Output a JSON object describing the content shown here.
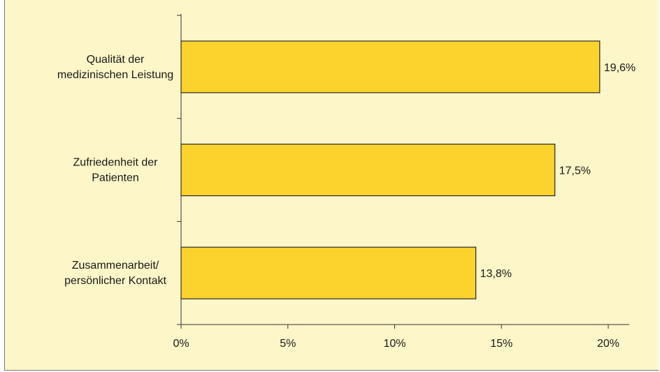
{
  "chart_data": {
    "type": "bar",
    "orientation": "horizontal",
    "categories": [
      [
        "Qualität der",
        "medizinischen Leistung"
      ],
      [
        "Zufriedenheit der",
        "Patienten"
      ],
      [
        "Zusammenarbeit/",
        "persönlicher Kontakt"
      ]
    ],
    "values": [
      19.6,
      17.5,
      13.8
    ],
    "value_labels": [
      "19,6%",
      "17,5%",
      "13,8%"
    ],
    "xlim": [
      0,
      20
    ],
    "x_ticks": [
      0,
      5,
      10,
      15,
      20
    ],
    "x_tick_labels": [
      "0%",
      "5%",
      "10%",
      "15%",
      "20%"
    ],
    "grid": false,
    "legend": "none",
    "colors": {
      "bar_fill": "#fcd22c",
      "background": "#fcf6c8"
    }
  }
}
